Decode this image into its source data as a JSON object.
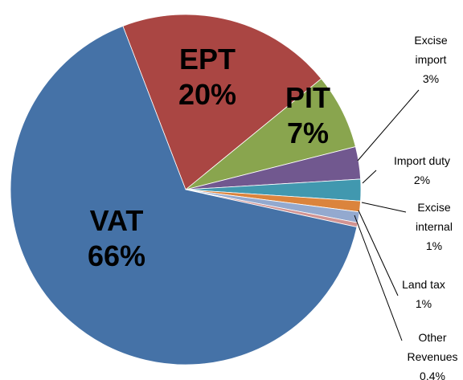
{
  "chart_data": {
    "type": "pie",
    "categories": [
      "EPT",
      "PIT",
      "Excise import",
      "Import duty",
      "Excise internal",
      "Land tax",
      "Other Revenues",
      "VAT"
    ],
    "values": [
      20,
      7,
      3,
      2,
      1,
      1,
      0.4,
      66
    ],
    "value_labels": [
      "20%",
      "7%",
      "3%",
      "2%",
      "1%",
      "1%",
      "0.4%",
      "66%"
    ],
    "colors": [
      "#aa4643",
      "#89a54e",
      "#71588f",
      "#4198af",
      "#db843d",
      "#93a9cf",
      "#d19392",
      "#4572a7"
    ]
  }
}
